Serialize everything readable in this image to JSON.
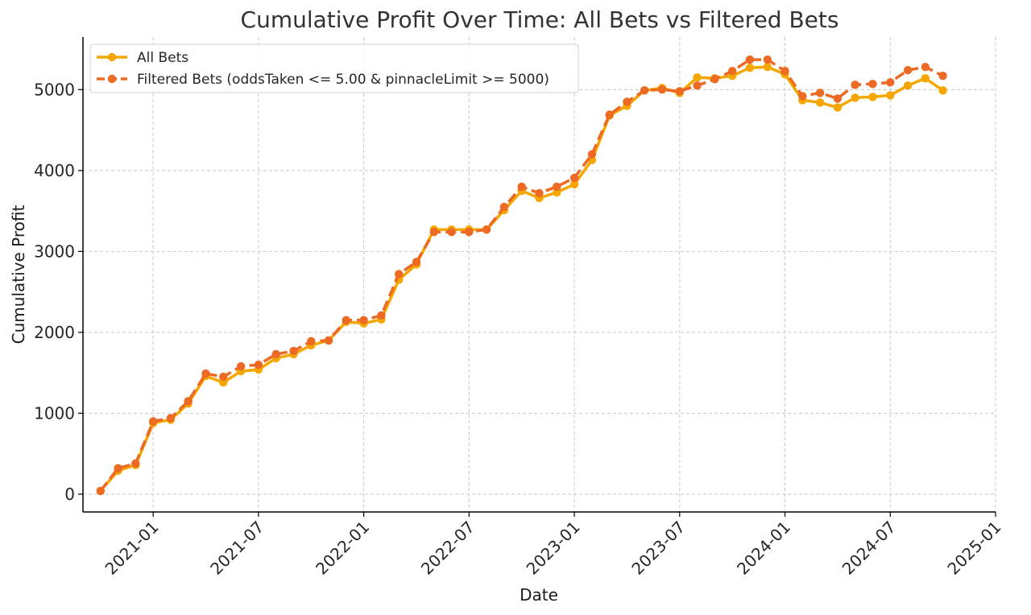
{
  "chart_data": {
    "type": "line",
    "title": "Cumulative Profit Over Time: All Bets vs Filtered Bets",
    "xlabel": "Date",
    "ylabel": "Cumulative Profit",
    "x_tick_labels": [
      "2021-01",
      "2021-07",
      "2022-01",
      "2022-07",
      "2023-01",
      "2023-07",
      "2024-01",
      "2024-07",
      "2025-01"
    ],
    "y_ticks": [
      0,
      1000,
      2000,
      3000,
      4000,
      5000
    ],
    "ylim": [
      -220,
      5650
    ],
    "xlim": [
      "2020-09",
      "2025-01"
    ],
    "grid": true,
    "legend_position": "top-left",
    "x": [
      "2020-10",
      "2020-11",
      "2020-12",
      "2021-01",
      "2021-02",
      "2021-03",
      "2021-04",
      "2021-05",
      "2021-06",
      "2021-07",
      "2021-08",
      "2021-09",
      "2021-10",
      "2021-11",
      "2021-12",
      "2022-01",
      "2022-02",
      "2022-03",
      "2022-04",
      "2022-05",
      "2022-06",
      "2022-07",
      "2022-08",
      "2022-09",
      "2022-10",
      "2022-11",
      "2022-12",
      "2023-01",
      "2023-02",
      "2023-03",
      "2023-04",
      "2023-05",
      "2023-06",
      "2023-07",
      "2023-08",
      "2023-09",
      "2023-10",
      "2023-11",
      "2023-12",
      "2024-01",
      "2024-02",
      "2024-03",
      "2024-04",
      "2024-05",
      "2024-06",
      "2024-07",
      "2024-08",
      "2024-09",
      "2024-10"
    ],
    "series": [
      {
        "name": "All Bets",
        "color": "#f5a700",
        "line_style": "solid",
        "values": [
          40,
          290,
          360,
          880,
          920,
          1120,
          1460,
          1380,
          1520,
          1540,
          1680,
          1730,
          1840,
          1900,
          2130,
          2110,
          2160,
          2650,
          2840,
          3270,
          3270,
          3270,
          3270,
          3510,
          3750,
          3660,
          3730,
          3830,
          4130,
          4680,
          4800,
          4990,
          5020,
          4960,
          5150,
          5140,
          5170,
          5270,
          5280,
          5190,
          4870,
          4840,
          4780,
          4900,
          4910,
          4930,
          5050,
          5140,
          4990
        ]
      },
      {
        "name": "Filtered Bets (oddsTaken <= 5.00 & pinnacleLimit >= 5000)",
        "color": "#ec6a24",
        "line_style": "dashed",
        "values": [
          40,
          320,
          380,
          900,
          940,
          1150,
          1490,
          1450,
          1580,
          1600,
          1730,
          1770,
          1890,
          1900,
          2150,
          2150,
          2210,
          2720,
          2870,
          3240,
          3240,
          3240,
          3270,
          3550,
          3800,
          3720,
          3800,
          3910,
          4200,
          4690,
          4850,
          4990,
          5000,
          4980,
          5050,
          5130,
          5230,
          5370,
          5370,
          5230,
          4920,
          4960,
          4890,
          5060,
          5070,
          5090,
          5240,
          5280,
          5170
        ]
      }
    ]
  }
}
